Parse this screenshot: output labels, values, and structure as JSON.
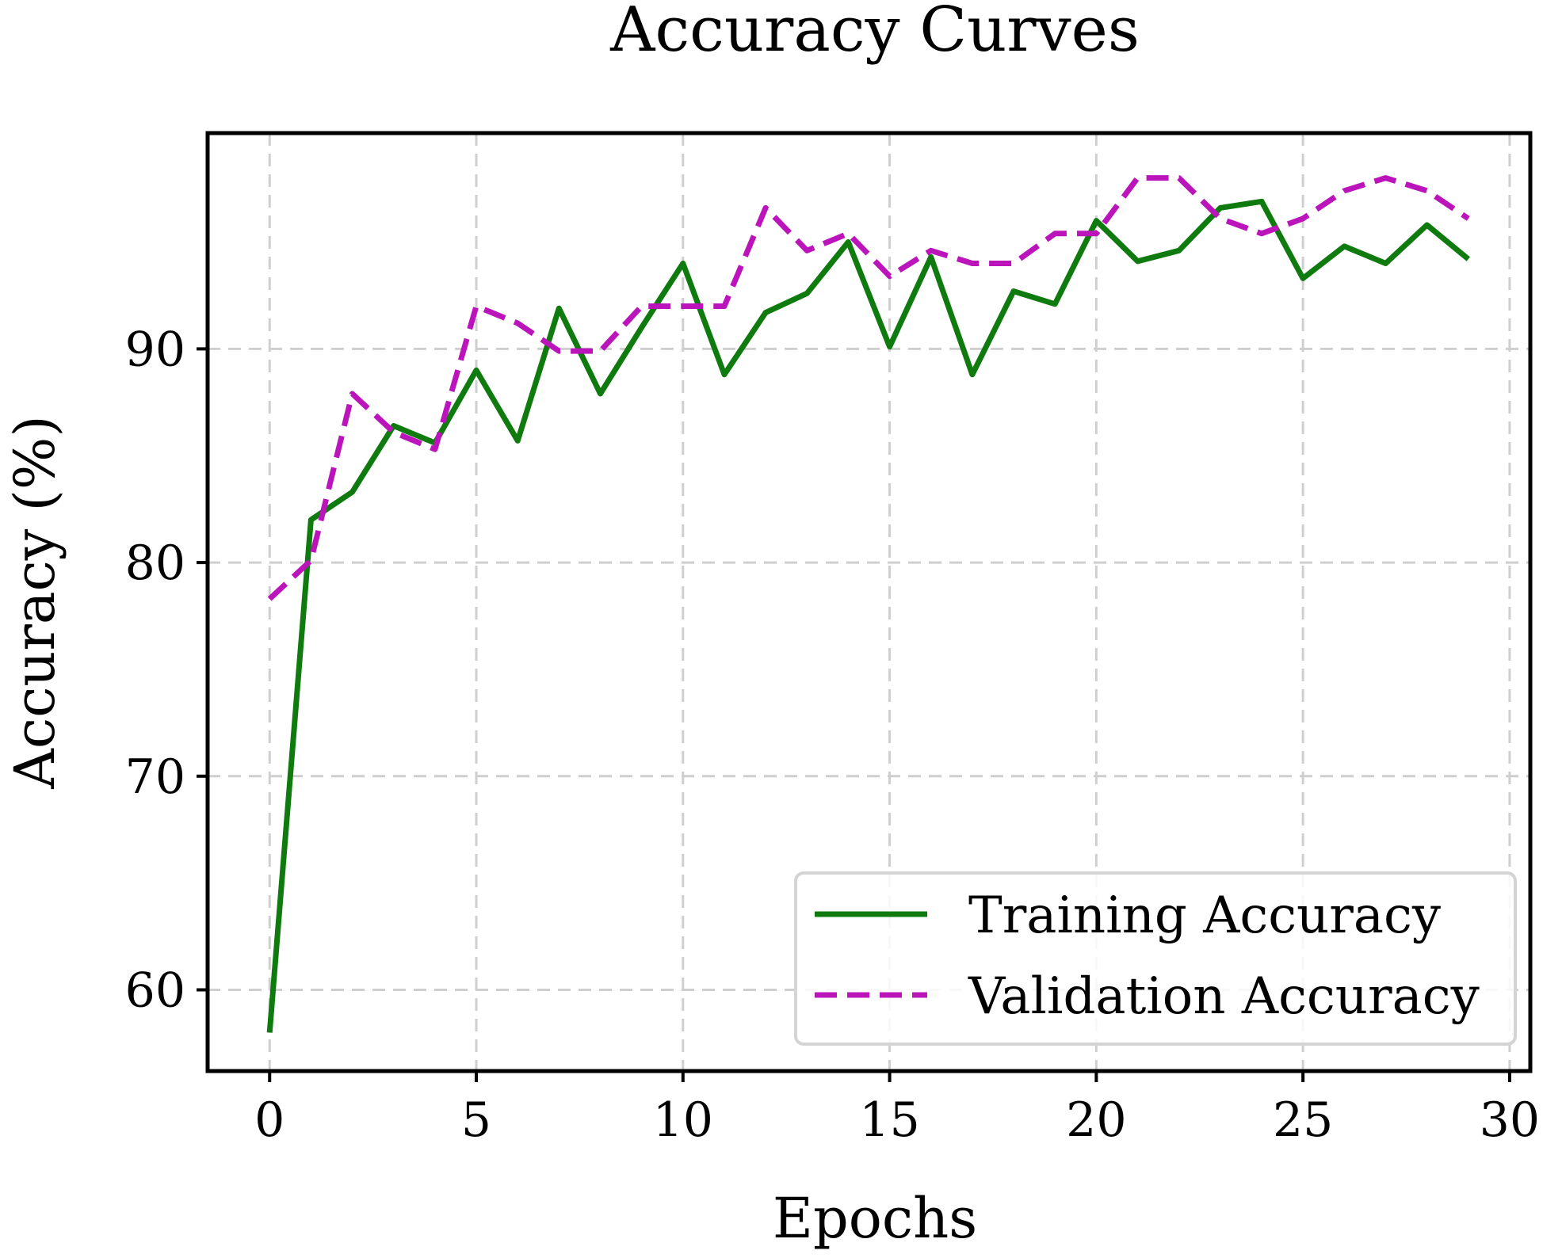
{
  "chart_data": {
    "type": "line",
    "title": "Accuracy Curves",
    "xlabel": "Epochs",
    "ylabel": "Accuracy (%)",
    "xlim": [
      -1.5,
      30.5
    ],
    "ylim": [
      56.2,
      100.1
    ],
    "xticks": [
      0,
      5,
      10,
      15,
      20,
      25,
      30
    ],
    "yticks": [
      60,
      70,
      80,
      90
    ],
    "grid": true,
    "legend_position": "lower-right",
    "x": [
      0,
      1,
      2,
      3,
      4,
      5,
      6,
      7,
      8,
      9,
      10,
      11,
      12,
      13,
      14,
      15,
      16,
      17,
      18,
      19,
      20,
      21,
      22,
      23,
      24,
      25,
      26,
      27,
      28,
      29
    ],
    "series": [
      {
        "name": "Training Accuracy",
        "color": "#0f7b0f",
        "style": "solid",
        "values": [
          58.0,
          82.0,
          83.3,
          86.4,
          85.6,
          89.0,
          85.7,
          91.9,
          87.9,
          91.0,
          94.0,
          88.8,
          91.7,
          92.6,
          95.0,
          90.1,
          94.3,
          88.8,
          92.7,
          92.1,
          96.0,
          94.1,
          94.6,
          96.6,
          96.9,
          93.3,
          94.8,
          94.0,
          95.8,
          94.2
        ]
      },
      {
        "name": "Validation Accuracy",
        "color": "#bb14bb",
        "style": "dashed",
        "values": [
          78.3,
          80.1,
          87.9,
          86.1,
          85.3,
          92.0,
          91.2,
          89.9,
          89.9,
          92.0,
          92.0,
          92.0,
          96.6,
          94.6,
          95.4,
          93.4,
          94.6,
          94.0,
          94.0,
          95.4,
          95.4,
          98.0,
          98.0,
          96.1,
          95.4,
          96.1,
          97.4,
          98.0,
          97.4,
          96.1
        ]
      }
    ]
  }
}
